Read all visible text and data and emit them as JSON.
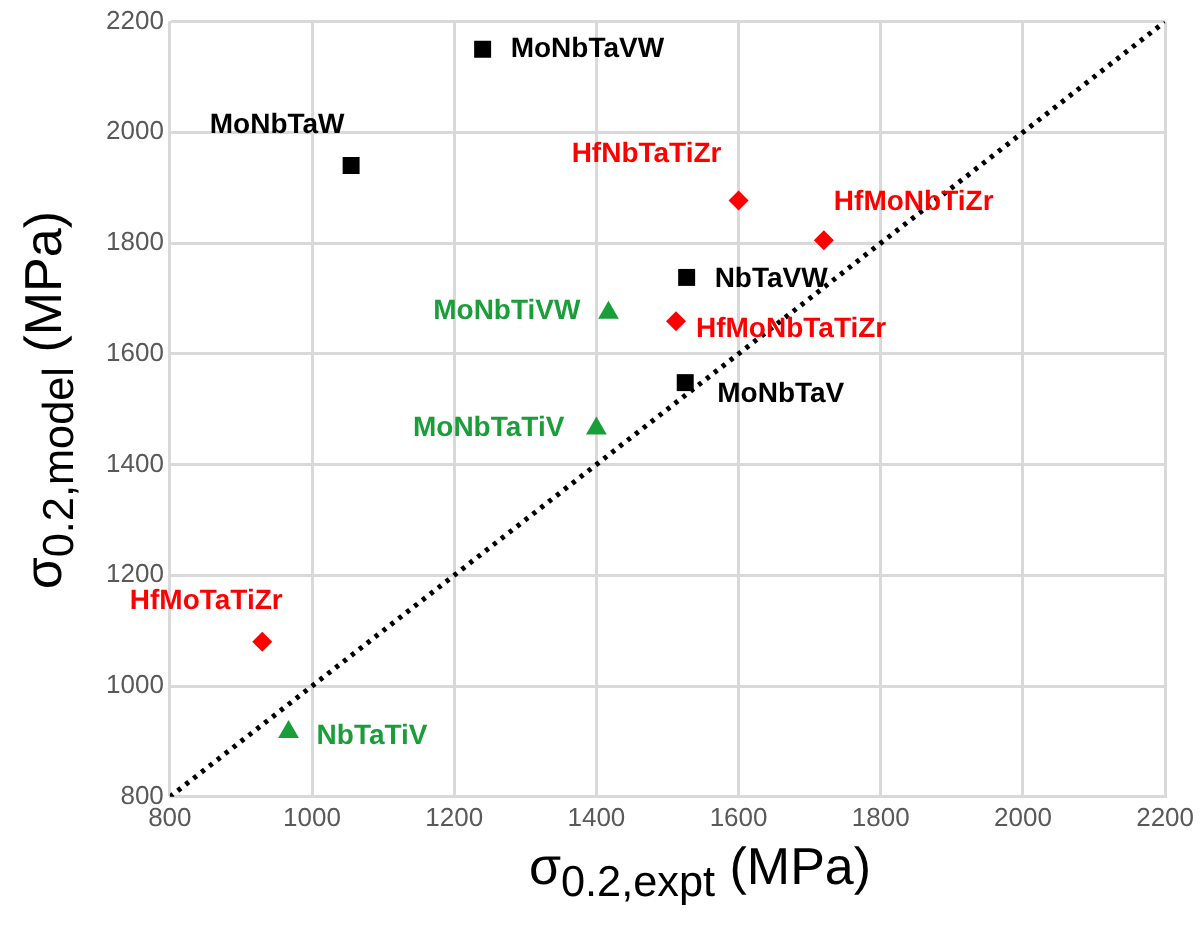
{
  "chart_data": {
    "type": "scatter",
    "xlabel": "σ$_{0.2,expt}$ (MPa)",
    "ylabel": "σ$_{0.2,model}$ (MPa)",
    "xlim": [
      800,
      2200
    ],
    "ylim": [
      800,
      2200
    ],
    "xticks": [
      800,
      1000,
      1200,
      1400,
      1600,
      1800,
      2000,
      2200
    ],
    "yticks": [
      800,
      1000,
      1200,
      1400,
      1600,
      1800,
      2000,
      2200
    ],
    "grid": true,
    "legend": false,
    "series": [
      {
        "type": "line",
        "color": "#000000",
        "marker": "none",
        "line_style": "dotted",
        "x": [
          800,
          2200
        ],
        "values": [
          800,
          2200
        ]
      },
      {
        "color": "#000000",
        "marker": "square",
        "x": [
          1240,
          1055,
          1527,
          1525
        ],
        "values": [
          2150,
          1940,
          1738,
          1548
        ]
      },
      {
        "color": "#ff0000",
        "marker": "diamond",
        "x": [
          1600,
          1720,
          1512,
          930
        ],
        "values": [
          1877,
          1805,
          1659,
          1080
        ]
      },
      {
        "color": "#1a9e3a",
        "marker": "triangle",
        "x": [
          1417,
          1400,
          967
        ],
        "values": [
          1674,
          1465,
          917
        ]
      }
    ],
    "annotations": [
      {
        "text": "MoNbTaVW",
        "x": 1240,
        "y": 2150
      },
      {
        "text": "MoNbTaW",
        "x": 1055,
        "y": 1940
      },
      {
        "text": "HfNbTaTiZr",
        "x": 1600,
        "y": 1877
      },
      {
        "text": "HfMoNbTiZr",
        "x": 1720,
        "y": 1805
      },
      {
        "text": "NbTaVW",
        "x": 1527,
        "y": 1738
      },
      {
        "text": "MoNbTiVW",
        "x": 1417,
        "y": 1674
      },
      {
        "text": "HfMoNbTaTiZr",
        "x": 1512,
        "y": 1659
      },
      {
        "text": "MoNbTaV",
        "x": 1525,
        "y": 1548
      },
      {
        "text": "MoNbTaTiV",
        "x": 1400,
        "y": 1465
      },
      {
        "text": "HfMoTaTiZr",
        "x": 930,
        "y": 1080
      },
      {
        "text": "NbTaTiV",
        "x": 967,
        "y": 917
      }
    ]
  }
}
